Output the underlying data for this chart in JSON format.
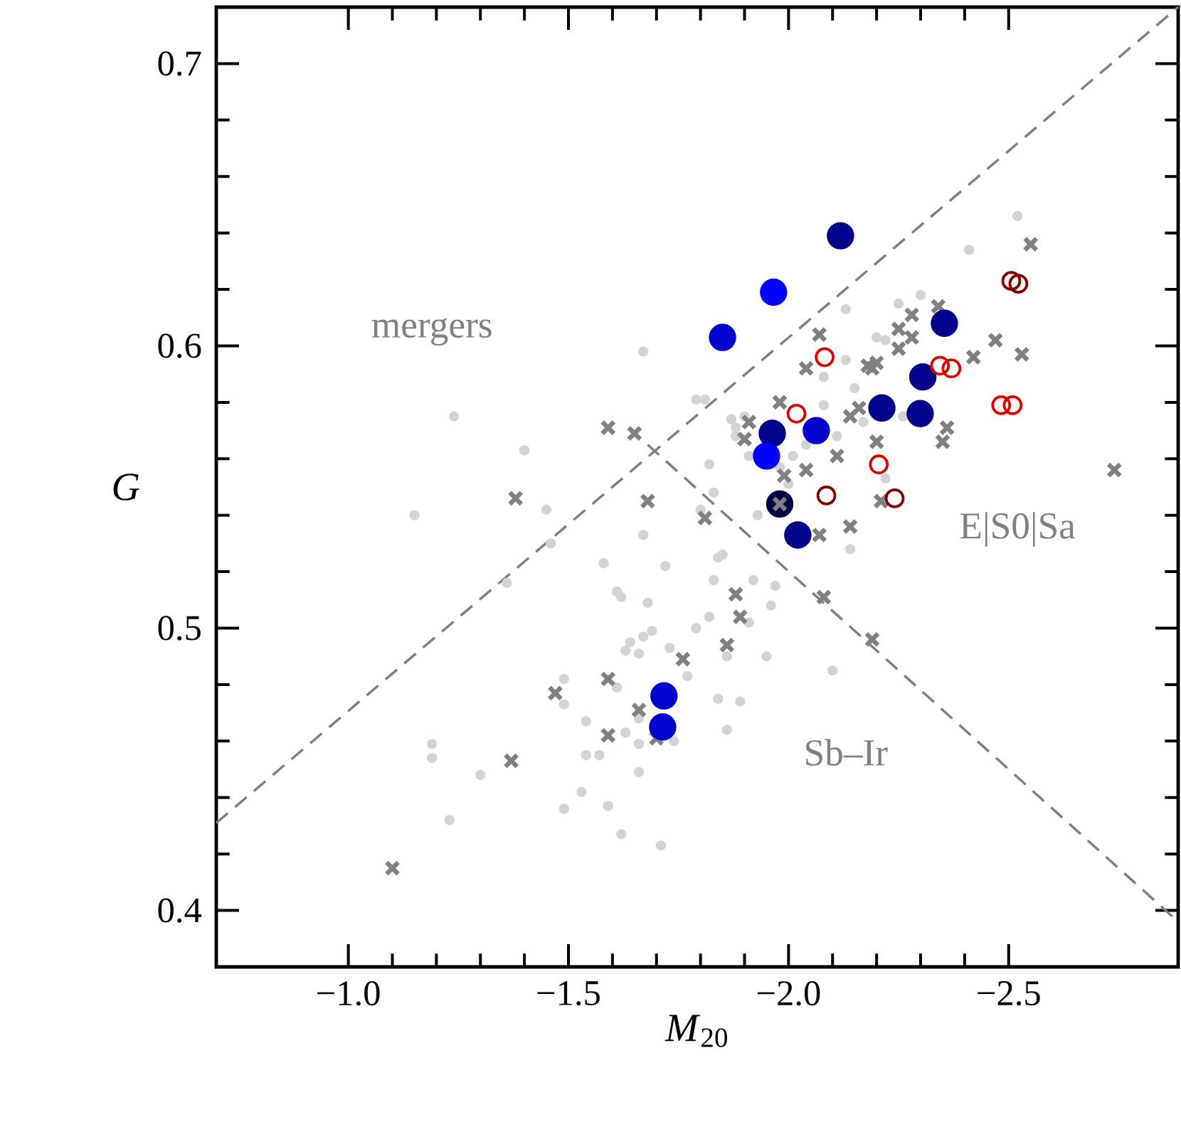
{
  "chart_data": {
    "type": "scatter",
    "xlabel": "*M*$_{20}$",
    "ylabel": "G",
    "xlim": [
      -0.7,
      -2.885
    ],
    "ylim": [
      0.38,
      0.72
    ],
    "xticks": [
      {
        "value": -1.0,
        "label": "−1.0"
      },
      {
        "value": -1.5,
        "label": "−1.5"
      },
      {
        "value": -2.0,
        "label": "−2.0"
      },
      {
        "value": -2.5,
        "label": "−2.5"
      }
    ],
    "yticks": [
      0.4,
      0.5,
      0.6,
      0.7
    ],
    "annotations": [
      "mergers",
      "E|S0|Sa",
      "Sb–Ir"
    ],
    "series": [
      {
        "type": "line",
        "color": "#808080",
        "line_style": "dashed",
        "marker": "none",
        "x": [
          -0.7,
          -2.885
        ],
        "values": [
          0.431,
          0.72
        ]
      },
      {
        "type": "line",
        "color": "#808080",
        "line_style": "dashed",
        "marker": "none",
        "x": [
          -1.68,
          -2.885
        ],
        "values": [
          0.565,
          0.396
        ]
      },
      {
        "color": "#d3d3d3",
        "marker": "circle",
        "x": [
          -1.24,
          -1.4,
          -1.15,
          -1.45,
          -1.46,
          -1.36,
          -1.49,
          -1.49,
          -1.19,
          -1.19,
          -1.3,
          -1.23,
          -1.49,
          -2.13,
          -1.67,
          -2.2,
          -2.13,
          -2.08,
          -2.15,
          -2.08,
          -1.79,
          -1.81,
          -1.87,
          -1.9,
          -1.88,
          -1.88,
          -2.04,
          -2.11,
          -1.91,
          -2.01,
          -2.17,
          -1.82,
          -1.83,
          -1.98,
          -2.0,
          -1.8,
          -1.93,
          -1.67,
          -2.14,
          -1.58,
          -1.72,
          -1.84,
          -1.85,
          -1.83,
          -1.92,
          -1.97,
          -1.61,
          -1.62,
          -1.68,
          -1.96,
          -1.82,
          -1.91,
          -1.79,
          -1.69,
          -1.67,
          -1.64,
          -1.63,
          -1.66,
          -1.73,
          -1.86,
          -1.95,
          -1.77,
          -1.61,
          -1.84,
          -1.89,
          -1.54,
          -1.66,
          -1.63,
          -1.66,
          -1.74,
          -1.86,
          -1.54,
          -1.57,
          -2.1,
          -1.66,
          -1.53,
          -1.59,
          -1.62,
          -1.71,
          -2.52,
          -2.41,
          -2.3,
          -2.25,
          -2.22,
          -2.26,
          -2.22
        ],
        "values": [
          0.575,
          0.563,
          0.54,
          0.542,
          0.53,
          0.516,
          0.482,
          0.473,
          0.459,
          0.454,
          0.448,
          0.432,
          0.436,
          0.613,
          0.598,
          0.603,
          0.595,
          0.589,
          0.585,
          0.579,
          0.581,
          0.581,
          0.574,
          0.575,
          0.571,
          0.568,
          0.565,
          0.568,
          0.561,
          0.561,
          0.573,
          0.558,
          0.548,
          0.557,
          0.551,
          0.542,
          0.54,
          0.533,
          0.528,
          0.523,
          0.522,
          0.525,
          0.526,
          0.517,
          0.517,
          0.515,
          0.513,
          0.511,
          0.509,
          0.508,
          0.504,
          0.502,
          0.5,
          0.499,
          0.497,
          0.495,
          0.492,
          0.491,
          0.493,
          0.49,
          0.49,
          0.483,
          0.479,
          0.475,
          0.474,
          0.467,
          0.468,
          0.463,
          0.459,
          0.46,
          0.464,
          0.455,
          0.455,
          0.485,
          0.449,
          0.442,
          0.437,
          0.427,
          0.423,
          0.646,
          0.634,
          0.618,
          0.615,
          0.602,
          0.575,
          0.553
        ]
      },
      {
        "color": "#000044",
        "marker": "circle",
        "x": [
          -1.98
        ],
        "values": [
          0.544
        ]
      },
      {
        "color": "#808080",
        "marker": "cross",
        "x": [
          -1.38,
          -1.47,
          -1.37,
          -1.1,
          -2.07,
          -2.04,
          -2.18,
          -2.19,
          -2.2,
          -1.98,
          -2.14,
          -2.16,
          -1.91,
          -1.9,
          -1.59,
          -1.65,
          -2.11,
          -1.99,
          -2.04,
          -1.68,
          -1.81,
          -1.98,
          -2.14,
          -2.07,
          -2.2,
          -2.21,
          -1.88,
          -1.89,
          -1.86,
          -1.76,
          -1.59,
          -1.66,
          -1.59,
          -1.7,
          -2.08,
          -2.19,
          -2.55,
          -2.34,
          -2.28,
          -2.25,
          -2.28,
          -2.25,
          -2.42,
          -2.47,
          -2.53,
          -2.36,
          -2.35,
          -2.74
        ],
        "values": [
          0.546,
          0.477,
          0.453,
          0.415,
          0.604,
          0.592,
          0.593,
          0.592,
          0.594,
          0.58,
          0.575,
          0.578,
          0.573,
          0.567,
          0.571,
          0.569,
          0.561,
          0.554,
          0.556,
          0.545,
          0.539,
          0.544,
          0.536,
          0.533,
          0.566,
          0.545,
          0.512,
          0.504,
          0.494,
          0.489,
          0.482,
          0.471,
          0.462,
          0.461,
          0.511,
          0.496,
          0.636,
          0.614,
          0.611,
          0.606,
          0.603,
          0.599,
          0.596,
          0.602,
          0.597,
          0.571,
          0.566,
          0.556
        ]
      },
      {
        "color": "#00008b",
        "marker": "circle",
        "x": [
          -2.118,
          -1.963,
          -2.021,
          -2.212,
          -2.354,
          -2.305,
          -2.299
        ],
        "values": [
          0.639,
          0.569,
          0.533,
          0.578,
          0.608,
          0.589,
          0.576
        ]
      },
      {
        "color": "#0000cd",
        "marker": "circle",
        "x": [
          -1.85,
          -2.063,
          -1.717,
          -1.714
        ],
        "values": [
          0.603,
          0.57,
          0.476,
          0.465
        ]
      },
      {
        "color": "#0000ff",
        "marker": "circle",
        "x": [
          -1.966,
          -1.95
        ],
        "values": [
          0.619,
          0.561
        ]
      },
      {
        "color": "#dd0000",
        "marker": "circle",
        "x": [
          -2.082,
          -2.018,
          -2.205,
          -2.344,
          -2.37,
          -2.483,
          -2.509
        ],
        "values": [
          0.596,
          0.576,
          0.558,
          0.593,
          0.592,
          0.579,
          0.579
        ]
      },
      {
        "color": "#800000",
        "marker": "circle",
        "x": [
          -2.506,
          -2.522,
          -2.241,
          -2.086
        ],
        "values": [
          0.623,
          0.622,
          0.546,
          0.547
        ]
      }
    ]
  }
}
